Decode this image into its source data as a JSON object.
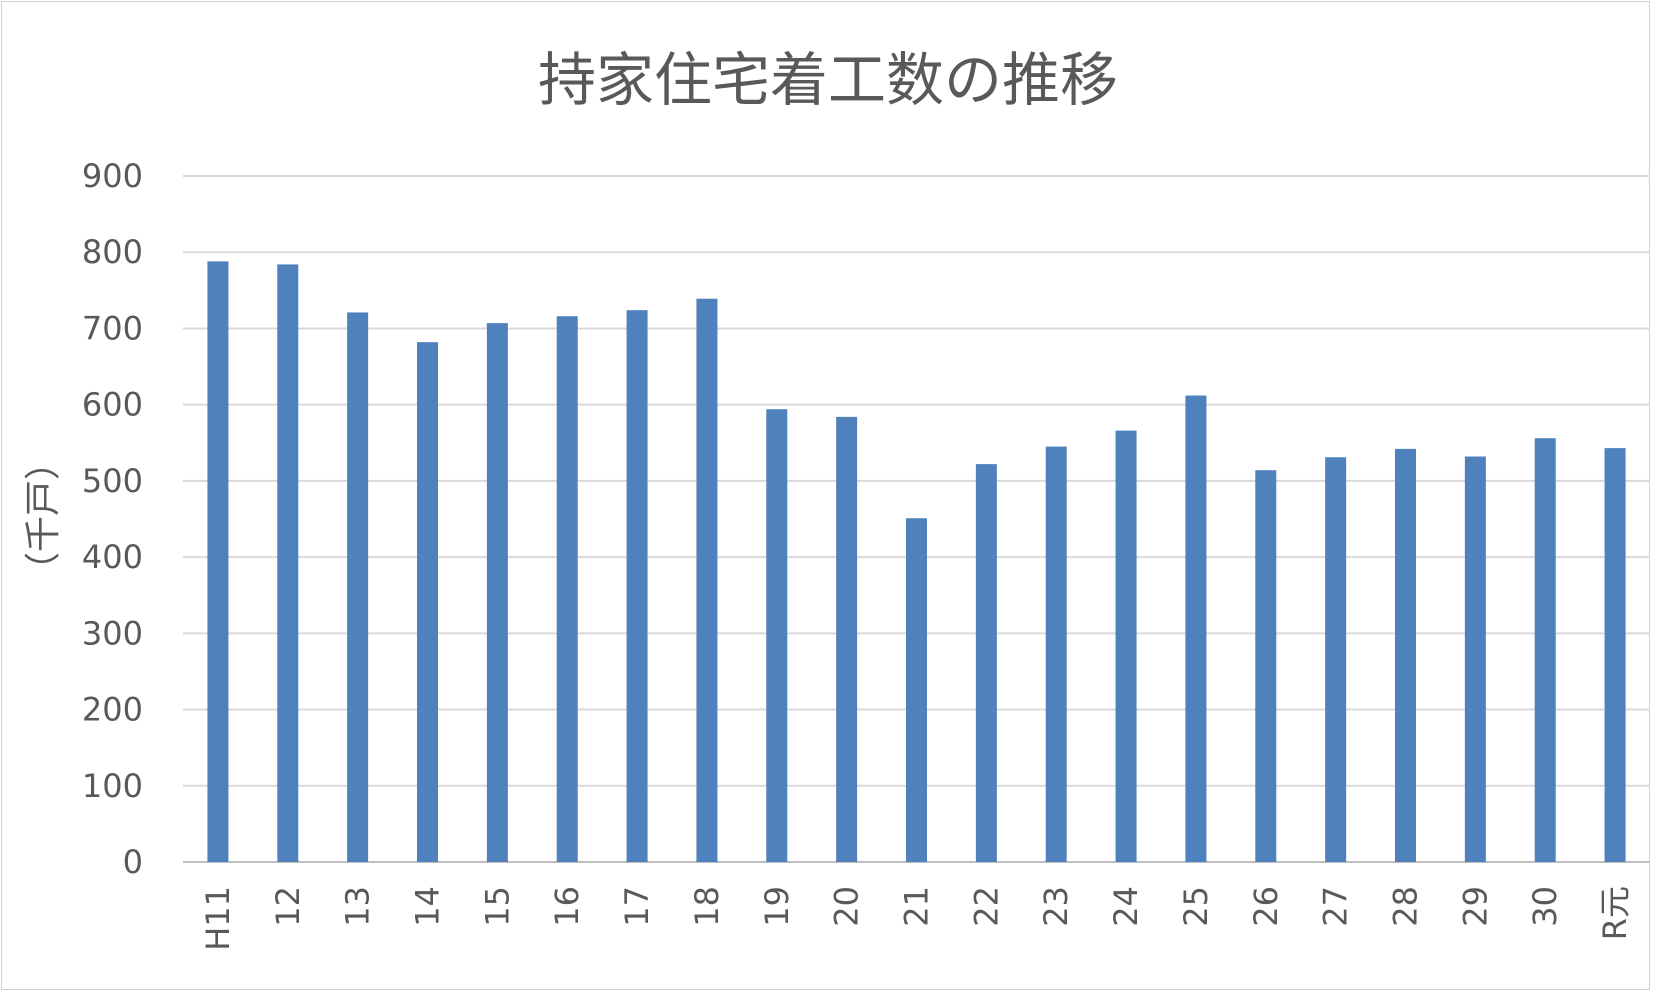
{
  "chart_data": {
    "type": "bar",
    "title": "持家住宅着工数の推移",
    "xlabel": "",
    "ylabel": "（千戸）",
    "ylim": [
      0,
      900
    ],
    "yticks": [
      0,
      100,
      200,
      300,
      400,
      500,
      600,
      700,
      800,
      900
    ],
    "grid": true,
    "legend": "none",
    "bar_color": "#4f81bd",
    "categories": [
      "H11",
      "12",
      "13",
      "14",
      "15",
      "16",
      "17",
      "18",
      "19",
      "20",
      "21",
      "22",
      "23",
      "24",
      "25",
      "26",
      "27",
      "28",
      "29",
      "30",
      "R元"
    ],
    "values": [
      788,
      784,
      721,
      682,
      707,
      716,
      724,
      739,
      594,
      584,
      451,
      522,
      545,
      566,
      612,
      514,
      531,
      542,
      532,
      556,
      543
    ]
  }
}
